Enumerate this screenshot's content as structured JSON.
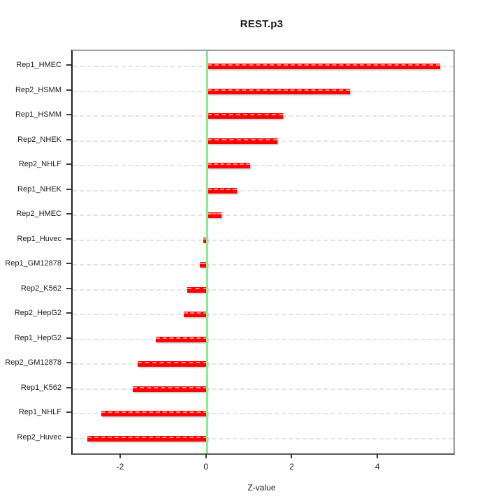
{
  "title": "REST.p3",
  "chart_data": {
    "type": "bar",
    "orientation": "horizontal",
    "title": "REST.p3",
    "xlabel": "Z-value",
    "categories": [
      "Rep1_HMEC",
      "Rep2_HSMM",
      "Rep1_HSMM",
      "Rep2_NHEK",
      "Rep2_NHLF",
      "Rep1_NHEK",
      "Rep2_HMEC",
      "Rep1_Huvec",
      "Rep1_GM12878",
      "Rep2_K562",
      "Rep2_HepG2",
      "Rep1_HepG2",
      "Rep2_GM12878",
      "Rep1_K562",
      "Rep1_NHLF",
      "Rep2_Huvec"
    ],
    "values": [
      5.43,
      3.33,
      1.76,
      1.63,
      1.0,
      0.69,
      0.33,
      -0.09,
      -0.17,
      -0.47,
      -0.55,
      -1.2,
      -1.62,
      -1.74,
      -2.47,
      -2.8
    ],
    "xlim": [
      -3.14,
      5.74
    ],
    "xticks": [
      -2,
      0,
      2,
      4
    ],
    "zero_line": 0,
    "grid": "horizontal-dashed-per-category",
    "legend": "none",
    "colors": {
      "bar": "#fe0000",
      "bar_stripe": "#ff9a9a",
      "zero_line": "#8deb8d",
      "grid_line": "#e3e3e3",
      "axis_text": "#1a1a1a",
      "box_border": "#9e9e9e"
    }
  }
}
